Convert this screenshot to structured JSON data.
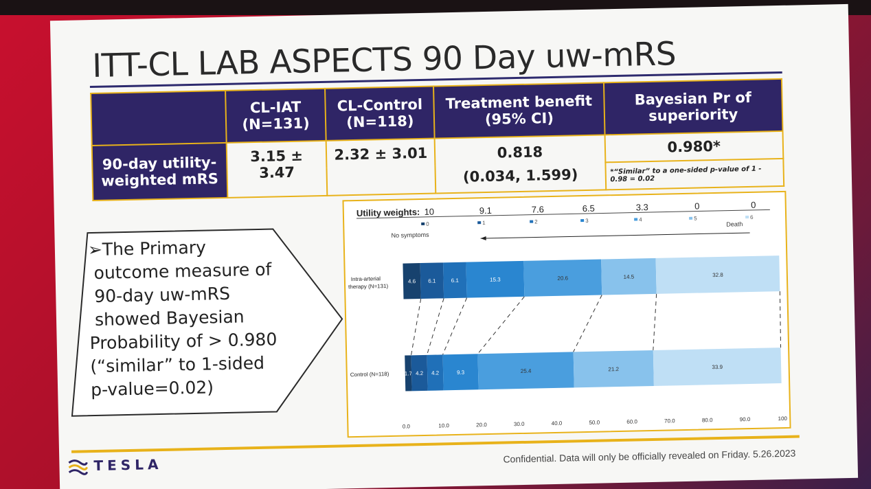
{
  "slide": {
    "title": "ITT-CL LAB ASPECTS 90 Day uw-mRS",
    "footer": "Confidential. Data will only be officially revealed on Friday. 5.26.2023",
    "logo_text": "TESLA"
  },
  "table": {
    "header": {
      "col_iat_line1": "CL-IAT",
      "col_iat_line2": "(N=131)",
      "col_ctrl_line1": "CL-Control",
      "col_ctrl_line2": "(N=118)",
      "col_benefit_line1": "Treatment benefit",
      "col_benefit_line2": "(95% CI)",
      "col_bayes_line1": "Bayesian Pr of",
      "col_bayes_line2": "superiority"
    },
    "row": {
      "label_line1": "90-day utility-",
      "label_line2": "weighted mRS",
      "iat": "3.15 ± 3.47",
      "ctrl": "2.32 ± 3.01",
      "benefit": "0.818",
      "benefit_ci": "(0.034, 1.599)",
      "bayes": "0.980*",
      "bayes_note": "*“Similar” to a one-sided p-value of 1 - 0.98 = 0.02"
    }
  },
  "callout": {
    "lines": [
      "➢The Primary",
      "outcome measure of",
      "90-day uw-mRS",
      "showed Bayesian",
      "Probability of > 0.980",
      "(“similar” to 1-sided",
      "p-value=0.02)"
    ]
  },
  "chart_data": {
    "type": "bar",
    "stacked": true,
    "orientation": "horizontal",
    "utility_weights_label": "Utility weights:",
    "utility_weights": [
      "10",
      "9.1",
      "7.6",
      "6.5",
      "3.3",
      "0",
      "0"
    ],
    "mrs_labels": [
      "0",
      "1",
      "2",
      "3",
      "4",
      "5",
      "6"
    ],
    "left_label": "No symptoms",
    "right_label": "Death",
    "categories": [
      "Intra-arterial therapy (N=131)",
      "Control (N=118)"
    ],
    "series": [
      {
        "mrs": "0",
        "color": "#17426e",
        "values": [
          4.6,
          1.7
        ]
      },
      {
        "mrs": "1",
        "color": "#1b5a9a",
        "values": [
          6.1,
          4.2
        ]
      },
      {
        "mrs": "2",
        "color": "#2070b8",
        "values": [
          6.1,
          4.2
        ]
      },
      {
        "mrs": "3",
        "color": "#2a86d0",
        "values": [
          15.3,
          9.3
        ]
      },
      {
        "mrs": "4",
        "color": "#4a9ede",
        "values": [
          20.6,
          25.4
        ]
      },
      {
        "mrs": "5",
        "color": "#88c2ec",
        "values": [
          14.5,
          21.2
        ]
      },
      {
        "mrs": "6",
        "color": "#bfdff5",
        "values": [
          32.8,
          33.9
        ]
      }
    ],
    "data_labels": [
      [
        "4.6",
        "6.1",
        "6.1",
        "15.3",
        "20.6",
        "14.5",
        "32.8"
      ],
      [
        "1.7",
        "4.2",
        "4.2",
        "9.3",
        "25.4",
        "21.2",
        "33.9"
      ]
    ],
    "x_ticks": [
      "0.0",
      "10.0",
      "20.0",
      "30.0",
      "40.0",
      "50.0",
      "60.0",
      "70.0",
      "80.0",
      "90.0",
      "100"
    ],
    "xlim": [
      0,
      100
    ]
  }
}
